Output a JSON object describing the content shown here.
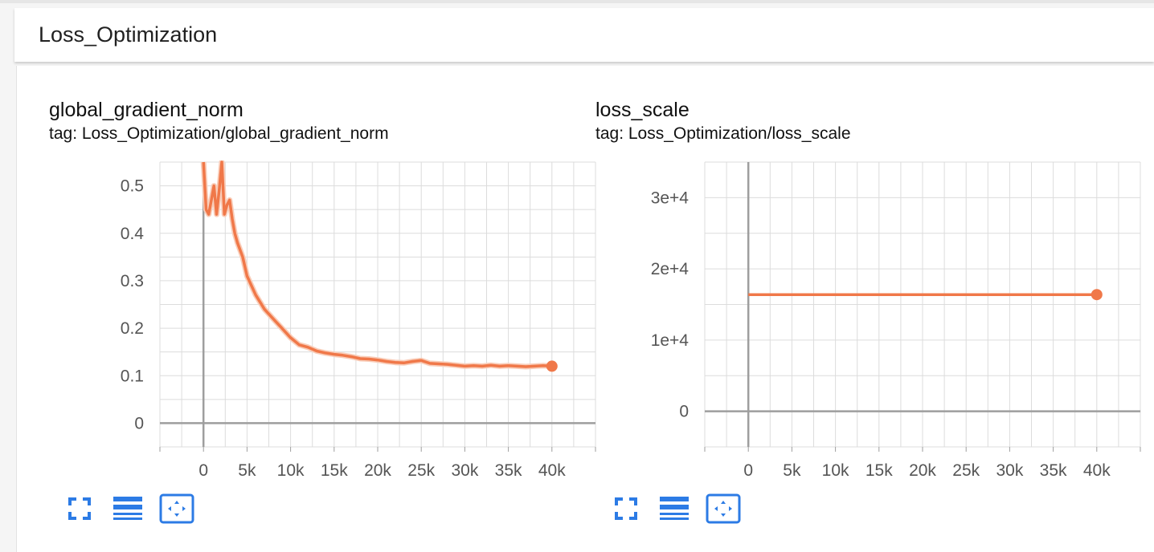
{
  "section": {
    "title": "Loss_Optimization"
  },
  "colors": {
    "series": "#f07849",
    "series_faint": "#f9cdb9",
    "axis": "#9e9e9e",
    "grid": "#dcdcdc",
    "icon": "#2c7be5"
  },
  "icons": [
    "expand-icon",
    "toggle-log-scale-icon",
    "fit-domain-icon"
  ],
  "chart_data": [
    {
      "type": "line",
      "title": "global_gradient_norm",
      "tag": "tag: Loss_Optimization/global_gradient_norm",
      "xlabel": "",
      "ylabel": "",
      "xlim": [
        -5000,
        45000
      ],
      "ylim": [
        -0.05,
        0.55
      ],
      "xticks": [
        0,
        5000,
        10000,
        15000,
        20000,
        25000,
        30000,
        35000,
        40000
      ],
      "xtick_labels": [
        "0",
        "5k",
        "10k",
        "15k",
        "20k",
        "25k",
        "30k",
        "35k",
        "40k"
      ],
      "yticks": [
        0,
        0.1,
        0.2,
        0.3,
        0.4,
        0.5
      ],
      "ytick_labels": [
        "0",
        "0.1",
        "0.2",
        "0.3",
        "0.4",
        "0.5"
      ],
      "grid": true,
      "series": [
        {
          "x": [
            0,
            300,
            600,
            900,
            1200,
            1500,
            1800,
            2100,
            2400,
            2700,
            3000,
            3300,
            3600,
            3900,
            4500,
            5000,
            5500,
            6000,
            7000,
            8000,
            9000,
            10000,
            11000,
            12000,
            13000,
            14000,
            15000,
            16000,
            17000,
            18000,
            19000,
            20000,
            21000,
            22000,
            23000,
            24000,
            25000,
            26000,
            27000,
            28000,
            29000,
            30000,
            31000,
            32000,
            33000,
            34000,
            35000,
            36000,
            37000,
            38000,
            39000,
            40000
          ],
          "y": [
            0.55,
            0.45,
            0.44,
            0.47,
            0.5,
            0.44,
            0.49,
            0.55,
            0.44,
            0.46,
            0.47,
            0.43,
            0.4,
            0.38,
            0.35,
            0.31,
            0.29,
            0.27,
            0.24,
            0.22,
            0.2,
            0.18,
            0.165,
            0.16,
            0.152,
            0.148,
            0.145,
            0.143,
            0.14,
            0.136,
            0.135,
            0.133,
            0.13,
            0.128,
            0.127,
            0.13,
            0.132,
            0.126,
            0.125,
            0.124,
            0.122,
            0.12,
            0.121,
            0.12,
            0.122,
            0.12,
            0.121,
            0.12,
            0.119,
            0.12,
            0.121,
            0.12
          ]
        }
      ]
    },
    {
      "type": "line",
      "title": "loss_scale",
      "tag": "tag: Loss_Optimization/loss_scale",
      "xlabel": "",
      "ylabel": "",
      "xlim": [
        -5000,
        45000
      ],
      "ylim": [
        -5000,
        35000
      ],
      "xticks": [
        0,
        5000,
        10000,
        15000,
        20000,
        25000,
        30000,
        35000,
        40000
      ],
      "xtick_labels": [
        "0",
        "5k",
        "10k",
        "15k",
        "20k",
        "25k",
        "30k",
        "35k",
        "40k"
      ],
      "yticks": [
        0,
        10000,
        20000,
        30000
      ],
      "ytick_labels": [
        "0",
        "1e+4",
        "2e+4",
        "3e+4"
      ],
      "grid": true,
      "series": [
        {
          "x": [
            0,
            40000
          ],
          "y": [
            16384,
            16384
          ]
        }
      ]
    }
  ]
}
